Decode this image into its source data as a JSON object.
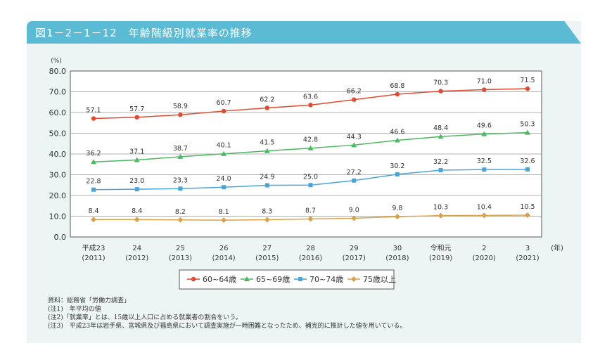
{
  "title": "図1－2－1－12　年齢階級別就業率の推移",
  "chart_data": {
    "type": "line",
    "ylabel": "(%)",
    "xunit": "(年)",
    "ylim": [
      0,
      80
    ],
    "yticks": [
      "0.0",
      "10.0",
      "20.0",
      "30.0",
      "40.0",
      "50.0",
      "60.0",
      "70.0",
      "80.0"
    ],
    "grid": true,
    "legend_position": "bottom",
    "categories": [
      [
        "平成23",
        "(2011)"
      ],
      [
        "24",
        "(2012)"
      ],
      [
        "25",
        "(2013)"
      ],
      [
        "26",
        "(2014)"
      ],
      [
        "27",
        "(2015)"
      ],
      [
        "28",
        "(2016)"
      ],
      [
        "29",
        "(2017)"
      ],
      [
        "30",
        "(2018)"
      ],
      [
        "令和元",
        "(2019)"
      ],
      [
        "2",
        "(2020)"
      ],
      [
        "3",
        "(2021)"
      ]
    ],
    "series": [
      {
        "name": "60~64歳",
        "color": "#e2492f",
        "marker": "circle",
        "values": [
          57.1,
          57.7,
          58.9,
          60.7,
          62.2,
          63.6,
          66.2,
          68.8,
          70.3,
          71.0,
          71.5
        ]
      },
      {
        "name": "65~69歳",
        "color": "#4cb860",
        "marker": "triangle",
        "values": [
          36.2,
          37.1,
          38.7,
          40.1,
          41.5,
          42.8,
          44.3,
          46.6,
          48.4,
          49.6,
          50.3
        ]
      },
      {
        "name": "70~74歳",
        "color": "#4aa4dc",
        "marker": "square",
        "values": [
          22.8,
          23.0,
          23.3,
          24.0,
          24.9,
          25.0,
          27.2,
          30.2,
          32.2,
          32.5,
          32.6
        ]
      },
      {
        "name": "75歳以上",
        "color": "#d9a24a",
        "marker": "diamond",
        "values": [
          8.4,
          8.4,
          8.2,
          8.1,
          8.3,
          8.7,
          9.0,
          9.8,
          10.3,
          10.4,
          10.5
        ]
      }
    ]
  },
  "notes": [
    "資料：総務省「労働力調査」",
    "(注1)　年平均の値",
    "(注2)「就業率」とは、15歳以上人口に占める就業者の割合をいう。",
    "(注3)　平成23年は岩手県、宮城県及び福島県において調査実施が一時困難となったため、補完的に推計した値を用いている。"
  ]
}
